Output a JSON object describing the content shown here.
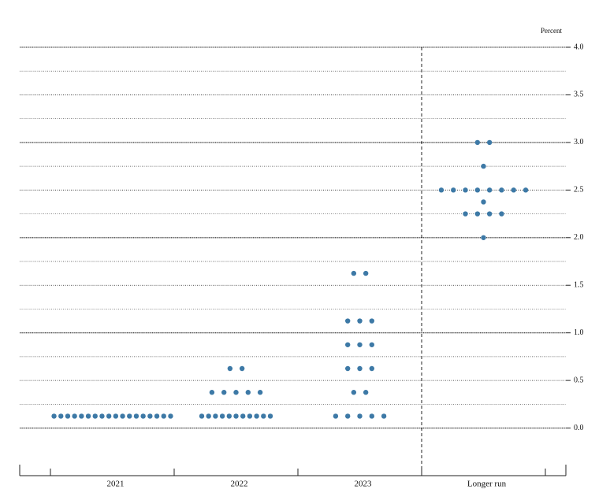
{
  "chart_data": {
    "type": "dotplot",
    "y_axis_label": "Percent",
    "categories": [
      "2021",
      "2022",
      "2023",
      "Longer run"
    ],
    "values": [
      [
        0.125,
        0.125,
        0.125,
        0.125,
        0.125,
        0.125,
        0.125,
        0.125,
        0.125,
        0.125,
        0.125,
        0.125,
        0.125,
        0.125,
        0.125,
        0.125,
        0.125,
        0.125
      ],
      [
        0.125,
        0.125,
        0.125,
        0.125,
        0.125,
        0.125,
        0.125,
        0.125,
        0.125,
        0.125,
        0.125,
        0.375,
        0.375,
        0.375,
        0.375,
        0.375,
        0.625,
        0.625
      ],
      [
        0.125,
        0.125,
        0.125,
        0.125,
        0.125,
        0.375,
        0.375,
        0.625,
        0.625,
        0.625,
        0.875,
        0.875,
        0.875,
        1.125,
        1.125,
        1.125,
        1.625,
        1.625
      ],
      [
        2.0,
        2.25,
        2.25,
        2.25,
        2.25,
        2.375,
        2.5,
        2.5,
        2.5,
        2.5,
        2.5,
        2.5,
        2.5,
        2.5,
        2.75,
        3.0,
        3.0
      ]
    ],
    "color": "#3d79a6",
    "ylim": [
      -0.5,
      4.0
    ],
    "yticks": [
      {
        "value": 0,
        "label": "0.0"
      },
      0.5,
      {
        "value": 1,
        "label": "1.0"
      },
      1.5,
      {
        "value": 2,
        "label": "2.0"
      },
      2.5,
      {
        "value": 3,
        "label": "3.0"
      },
      3.5,
      {
        "value": 4,
        "label": "4.0"
      }
    ],
    "grid": true
  }
}
